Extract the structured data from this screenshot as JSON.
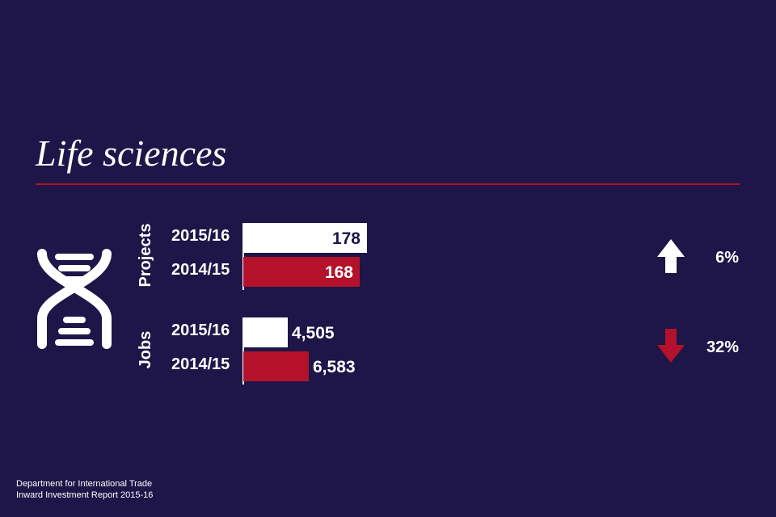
{
  "page": {
    "title": "Life sciences"
  },
  "colors": {
    "background": "#1e1548",
    "accent": "#b3122a",
    "current": "#ffffff",
    "previous": "#b3122a",
    "value_on_current": "#1e1548"
  },
  "icon": {
    "name": "dna-icon"
  },
  "chart_data": {
    "type": "bar",
    "orientation": "horizontal",
    "title": "Life sciences",
    "groups": [
      {
        "name": "Projects",
        "categories": [
          "2015/16",
          "2014/15"
        ],
        "values": [
          178,
          168
        ],
        "value_labels": [
          "178",
          "168"
        ],
        "change": {
          "direction": "up",
          "label": "6%"
        }
      },
      {
        "name": "Jobs",
        "categories": [
          "2015/16",
          "2014/15"
        ],
        "values": [
          4505,
          6583
        ],
        "value_labels": [
          "4,505",
          "6,583"
        ],
        "change": {
          "direction": "down",
          "label": "32%"
        }
      }
    ],
    "legend": "none",
    "grid": false
  },
  "footer": {
    "line1": "Department for International Trade",
    "line2": "Inward Investment Report 2015-16"
  }
}
